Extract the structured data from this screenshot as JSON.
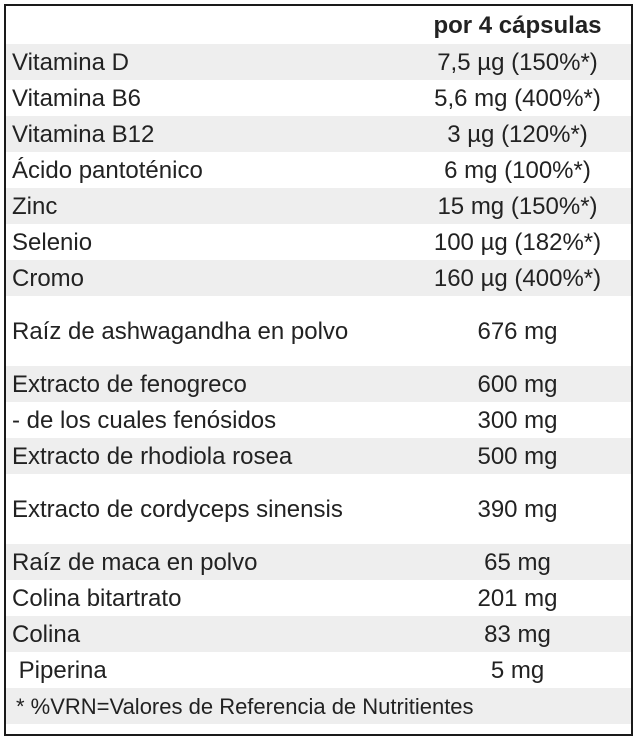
{
  "header": {
    "label_column": "",
    "value_column": "por 4 cápsulas"
  },
  "rows": [
    {
      "name": "Vitamina D",
      "value": "7,5 µg (150%*)"
    },
    {
      "name": "Vitamina B6",
      "value": "5,6 mg (400%*)"
    },
    {
      "name": "Vitamina B12",
      "value": "3 µg (120%*)"
    },
    {
      "name": "Ácido pantoténico",
      "value": "6 mg (100%*)"
    },
    {
      "name": "Zinc",
      "value": "15 mg (150%*)"
    },
    {
      "name": "Selenio",
      "value": "100 µg (182%*)"
    },
    {
      "name": "Cromo",
      "value": "160 µg (400%*)"
    },
    {
      "name": "Raíz de ashwagandha en polvo",
      "value": "676 mg"
    },
    {
      "name": "Extracto de fenogreco",
      "value": "600 mg"
    },
    {
      "name": "- de los cuales fenósidos",
      "value": "300 mg"
    },
    {
      "name": "Extracto de rhodiola rosea",
      "value": "500 mg"
    },
    {
      "name": "Extracto de cordyceps sinensis",
      "value": "390 mg"
    },
    {
      "name": "Raíz de maca en polvo",
      "value": "65 mg"
    },
    {
      "name": "Colina bitartrato",
      "value": "201 mg"
    },
    {
      "name": "Colina",
      "value": "83 mg"
    },
    {
      "name": " Piperina",
      "value": "5 mg"
    }
  ],
  "footnote": "* %VRN=Valores de Referencia de Nutritientes"
}
